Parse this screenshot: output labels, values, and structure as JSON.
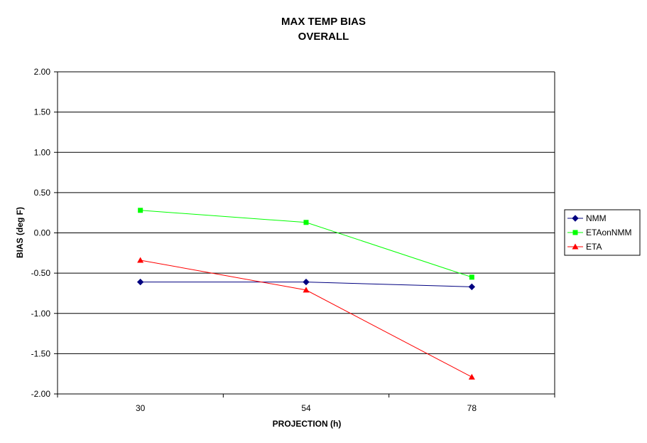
{
  "chart_data": {
    "type": "line",
    "title": "MAX TEMP BIAS",
    "subtitle": "OVERALL",
    "xlabel": "PROJECTION (h)",
    "ylabel": "BIAS (deg F)",
    "categories": [
      "30",
      "54",
      "78"
    ],
    "ylim": [
      -2.0,
      2.0
    ],
    "ytick_labels": [
      "2.00",
      "1.50",
      "1.00",
      "0.50",
      "0.00",
      "-0.50",
      "-1.00",
      "-1.50",
      "-2.00"
    ],
    "grid": true,
    "legend_position": "right",
    "series": [
      {
        "name": "NMM",
        "color": "#000080",
        "marker": "diamond",
        "values": [
          -0.61,
          -0.61,
          -0.67
        ]
      },
      {
        "name": "ETAonNMM",
        "color": "#00ff00",
        "marker": "square",
        "values": [
          0.28,
          0.13,
          -0.55
        ]
      },
      {
        "name": "ETA",
        "color": "#ff0000",
        "marker": "triangle",
        "values": [
          -0.34,
          -0.71,
          -1.79
        ]
      }
    ]
  }
}
